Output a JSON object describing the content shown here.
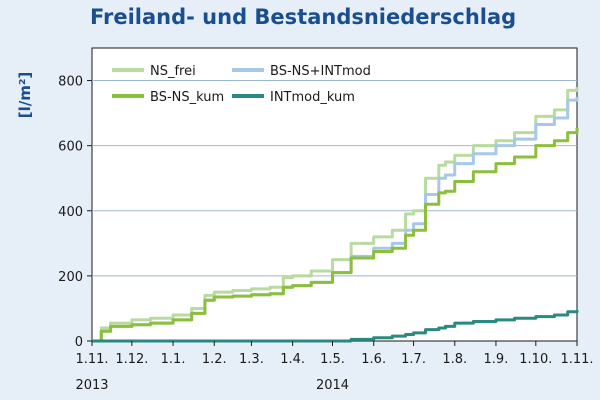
{
  "chart_data": {
    "type": "line",
    "title": "Freiland- und Bestandsniederschlag",
    "xlabel": "",
    "ylabel": "[l/m²]",
    "ylim": [
      0,
      900
    ],
    "yticks": [
      0,
      200,
      400,
      600,
      800
    ],
    "grid": true,
    "legend_position": "top-left",
    "x_tick_labels": [
      "1.11.",
      "1.12.",
      "1.1.",
      "1.2.",
      "1.3.",
      "1.4.",
      "1.5.",
      "1.6.",
      "1.7.",
      "1.8.",
      "1.9.",
      "1.10.",
      "1.11."
    ],
    "year_labels": [
      {
        "label": "2013",
        "at": "1.11.2013"
      },
      {
        "label": "2014",
        "at": "1.5.2014"
      }
    ],
    "x": [
      "2013-11-01",
      "2013-11-08",
      "2013-11-15",
      "2013-12-01",
      "2013-12-15",
      "2014-01-01",
      "2014-01-15",
      "2014-01-25",
      "2014-02-01",
      "2014-02-15",
      "2014-03-01",
      "2014-03-15",
      "2014-03-25",
      "2014-04-01",
      "2014-04-15",
      "2014-05-01",
      "2014-05-15",
      "2014-06-01",
      "2014-06-15",
      "2014-06-25",
      "2014-07-01",
      "2014-07-10",
      "2014-07-20",
      "2014-07-25",
      "2014-08-01",
      "2014-08-15",
      "2014-09-01",
      "2014-09-15",
      "2014-10-01",
      "2014-10-15",
      "2014-10-25",
      "2014-11-01"
    ],
    "series": [
      {
        "name": "NS_frei",
        "color": "#b8dba0",
        "values": [
          0,
          40,
          55,
          65,
          70,
          80,
          100,
          140,
          150,
          155,
          160,
          165,
          195,
          200,
          215,
          250,
          300,
          320,
          340,
          390,
          400,
          500,
          540,
          550,
          570,
          600,
          615,
          640,
          690,
          710,
          770,
          780
        ]
      },
      {
        "name": "BS-NS+INTmod",
        "color": "#a8c8e8",
        "values": [
          0,
          30,
          45,
          50,
          55,
          65,
          85,
          125,
          135,
          138,
          142,
          145,
          165,
          170,
          180,
          210,
          260,
          285,
          300,
          340,
          360,
          450,
          500,
          510,
          545,
          575,
          600,
          620,
          665,
          685,
          740,
          750
        ]
      },
      {
        "name": "BS-NS_kum",
        "color": "#8bbf3c",
        "values": [
          0,
          30,
          45,
          50,
          55,
          65,
          85,
          125,
          135,
          138,
          142,
          145,
          165,
          170,
          180,
          210,
          255,
          275,
          285,
          325,
          340,
          420,
          455,
          460,
          490,
          520,
          545,
          565,
          600,
          615,
          640,
          655
        ]
      },
      {
        "name": "INTmod_kum",
        "color": "#2a8a80",
        "values": [
          0,
          0,
          0,
          0,
          0,
          0,
          0,
          0,
          0,
          0,
          0,
          0,
          0,
          0,
          0,
          0,
          5,
          10,
          15,
          20,
          25,
          35,
          40,
          45,
          55,
          60,
          65,
          70,
          75,
          80,
          90,
          95
        ]
      }
    ]
  }
}
